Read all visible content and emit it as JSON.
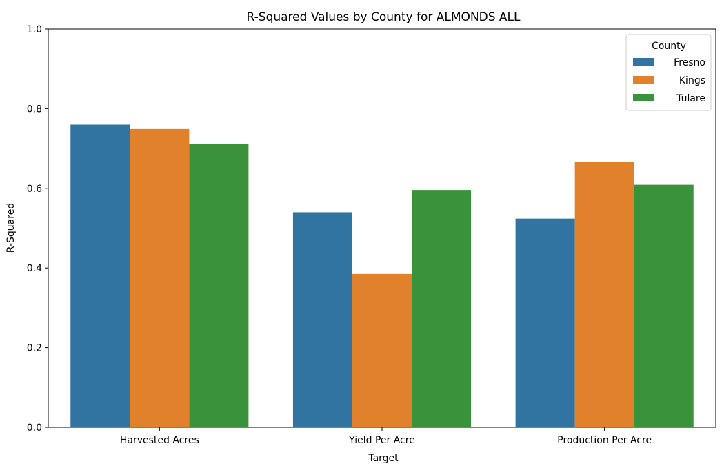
{
  "chart_data": {
    "type": "bar",
    "title": "R-Squared Values by County for ALMONDS ALL",
    "xlabel": "Target",
    "ylabel": "R-Squared",
    "ylim": [
      0,
      1.0
    ],
    "yticks": [
      0.0,
      0.2,
      0.4,
      0.6,
      0.8,
      1.0
    ],
    "ytick_labels": [
      "0.0",
      "0.2",
      "0.4",
      "0.6",
      "0.8",
      "1.0"
    ],
    "categories": [
      "Harvested Acres",
      "Yield Per Acre",
      "Production Per Acre"
    ],
    "series": [
      {
        "name": "Fresno",
        "color": "#3274a1",
        "values": [
          0.76,
          0.54,
          0.524
        ]
      },
      {
        "name": "Kings",
        "color": "#e1812c",
        "values": [
          0.749,
          0.385,
          0.667
        ]
      },
      {
        "name": "Tulare",
        "color": "#3a923a",
        "values": [
          0.712,
          0.596,
          0.609
        ]
      }
    ],
    "legend": {
      "title": "County",
      "placement": "upper-right"
    },
    "grid": false
  }
}
